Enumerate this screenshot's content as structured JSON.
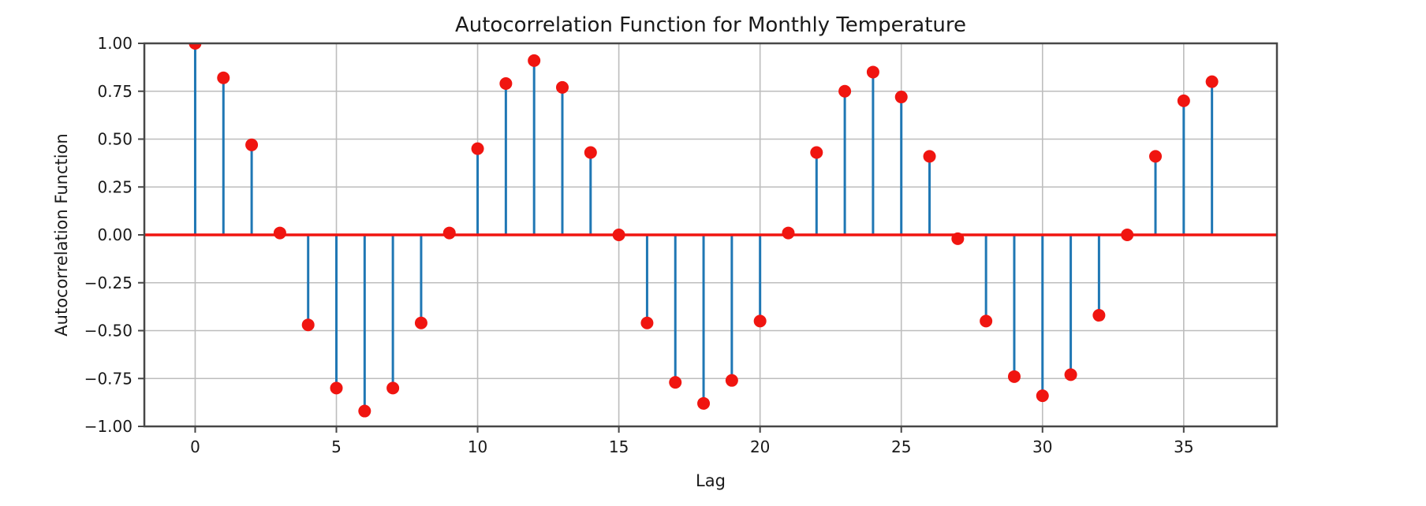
{
  "chart_data": {
    "type": "stem",
    "title": "Autocorrelation Function for Monthly Temperature",
    "xlabel": "Lag",
    "ylabel": "Autocorrelation Function",
    "x": [
      0,
      1,
      2,
      3,
      4,
      5,
      6,
      7,
      8,
      9,
      10,
      11,
      12,
      13,
      14,
      15,
      16,
      17,
      18,
      19,
      20,
      21,
      22,
      23,
      24,
      25,
      26,
      27,
      28,
      29,
      30,
      31,
      32,
      33,
      34,
      35,
      36
    ],
    "values": [
      1.0,
      0.82,
      0.47,
      0.01,
      -0.47,
      -0.8,
      -0.92,
      -0.8,
      -0.46,
      0.01,
      0.45,
      0.79,
      0.91,
      0.77,
      0.43,
      0.0,
      -0.46,
      -0.77,
      -0.88,
      -0.76,
      -0.45,
      0.01,
      0.43,
      0.75,
      0.85,
      0.72,
      0.41,
      -0.02,
      -0.45,
      -0.74,
      -0.84,
      -0.73,
      -0.42,
      0.0,
      0.41,
      0.7,
      0.8
    ],
    "xlim": [
      -1.8,
      38.3
    ],
    "ylim": [
      -1.0,
      1.0
    ],
    "xticks": [
      0,
      5,
      10,
      15,
      20,
      25,
      30,
      35
    ],
    "xticklabels": [
      "0",
      "5",
      "10",
      "15",
      "20",
      "25",
      "30",
      "35"
    ],
    "yticks": [
      1.0,
      0.75,
      0.5,
      0.25,
      0.0,
      -0.25,
      -0.5,
      -0.75,
      -1.0
    ],
    "yticklabels": [
      "1.00",
      "0.75",
      "0.50",
      "0.25",
      "0.00",
      "−0.25",
      "−0.50",
      "−0.75",
      "−1.00"
    ],
    "grid": true,
    "legend": null,
    "baseline_y": 0,
    "colors": {
      "stem": "#1f77b4",
      "marker": "#f01510",
      "baseline": "#f01510",
      "grid": "#bdbdbd",
      "spine": "#474747",
      "text": "#1a1a1a"
    }
  }
}
